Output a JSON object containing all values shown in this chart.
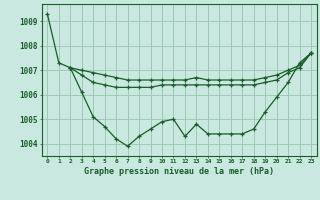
{
  "title": "Graphe pression niveau de la mer (hPa)",
  "background_color": "#c8e8e0",
  "grid_color": "#a0c8b8",
  "line_color": "#1a5c2a",
  "ylim": [
    1003.5,
    1009.7
  ],
  "xlim": [
    -0.5,
    23.5
  ],
  "yticks": [
    1004,
    1005,
    1006,
    1007,
    1008,
    1009
  ],
  "xtick_labels": [
    "0",
    "1",
    "2",
    "3",
    "4",
    "5",
    "6",
    "7",
    "8",
    "9",
    "10",
    "11",
    "12",
    "13",
    "14",
    "15",
    "16",
    "17",
    "18",
    "19",
    "20",
    "21",
    "22",
    "23"
  ],
  "series": [
    [
      1009.3,
      1007.3,
      1007.1,
      1006.1,
      1005.1,
      1004.7,
      1004.2,
      1003.9,
      1004.3,
      1004.6,
      1004.9,
      1005.0,
      1004.3,
      1004.8,
      1004.4,
      1004.4,
      1004.4,
      1004.4,
      1004.6,
      1005.3,
      1005.9,
      1006.5,
      1007.3,
      1007.7
    ],
    [
      null,
      null,
      1007.1,
      1007.0,
      1006.9,
      1006.8,
      1006.7,
      1006.6,
      1006.6,
      1006.6,
      1006.6,
      1006.6,
      1006.6,
      1006.7,
      1006.6,
      1006.6,
      1006.6,
      1006.6,
      1006.6,
      1006.7,
      1006.8,
      1007.0,
      1007.2,
      1007.7
    ],
    [
      null,
      null,
      1007.1,
      1006.8,
      1006.5,
      1006.4,
      1006.3,
      1006.3,
      1006.3,
      1006.3,
      1006.4,
      1006.4,
      1006.4,
      1006.4,
      1006.4,
      1006.4,
      1006.4,
      1006.4,
      1006.4,
      1006.5,
      1006.6,
      1006.9,
      1007.1,
      1007.7
    ]
  ]
}
